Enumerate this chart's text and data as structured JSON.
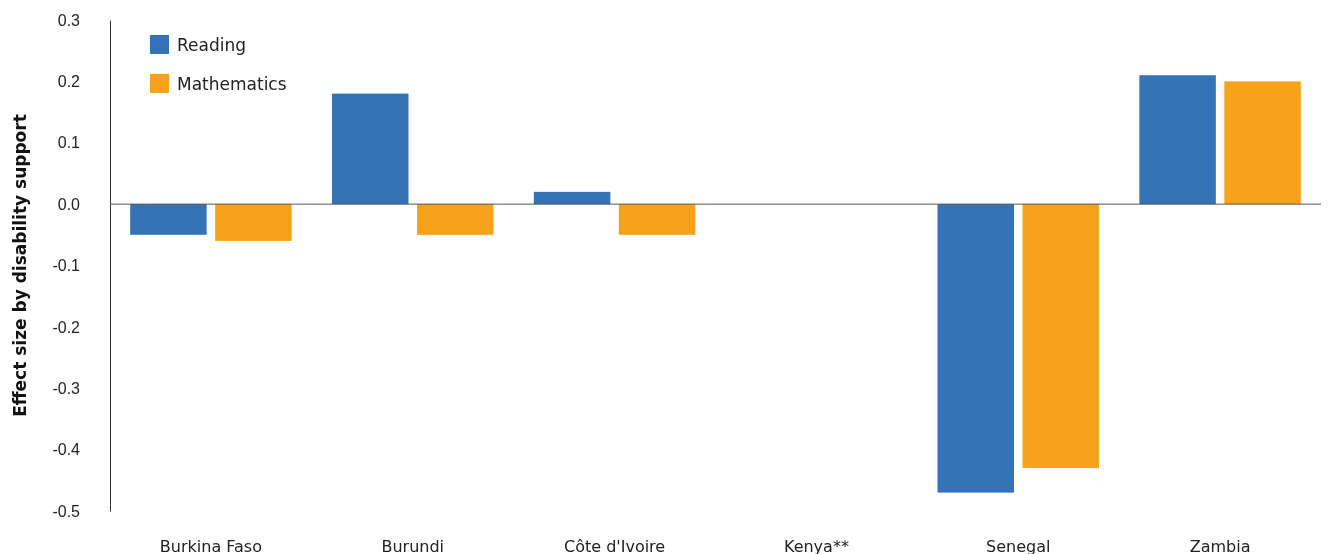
{
  "chart_data": {
    "type": "bar",
    "ylabel": "Effect size by disability support",
    "categories": [
      "Burkina Faso",
      "Burundi",
      "Côte d'Ivoire",
      "Kenya**",
      "Senegal",
      "Zambia"
    ],
    "series": [
      {
        "name": "Reading",
        "color": "#3473b5",
        "values": [
          -0.05,
          0.18,
          0.02,
          null,
          -0.47,
          0.21
        ]
      },
      {
        "name": "Mathematics",
        "color": "#f6a31b",
        "values": [
          -0.06,
          -0.05,
          -0.05,
          null,
          -0.43,
          0.2
        ]
      }
    ],
    "ylim": [
      -0.5,
      0.3
    ],
    "yticks": [
      {
        "value": 0.3,
        "label": "0.3"
      },
      {
        "value": 0.2,
        "label": "0.2"
      },
      {
        "value": 0.1,
        "label": "0.1"
      },
      {
        "value": 0,
        "label": "0.0"
      },
      {
        "value": -0.1,
        "label": "-0.1"
      },
      {
        "value": -0.2,
        "label": "-0.2"
      },
      {
        "value": -0.3,
        "label": "-0.3"
      },
      {
        "value": -0.4,
        "label": "-0.4"
      },
      {
        "value": -0.5,
        "label": "-0.5"
      }
    ],
    "legend": "top left"
  }
}
